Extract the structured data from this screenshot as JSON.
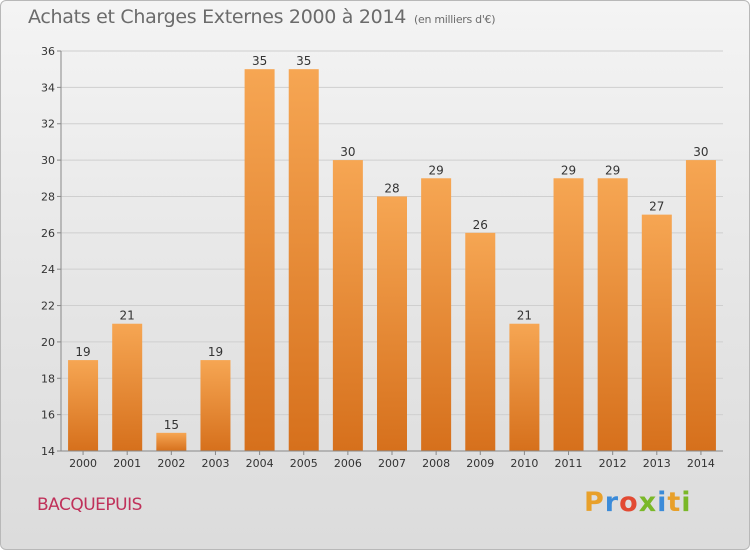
{
  "header": {
    "title": "Achats et Charges Externes 2000 à 2014",
    "unit": "(en milliers d'€)"
  },
  "footer": {
    "place": "BACQUEPUIS",
    "brand_letters": [
      "P",
      "r",
      "o",
      "x",
      "i",
      "t",
      "i"
    ],
    "brand_colors": [
      "#e8a02a",
      "#3b8bd9",
      "#e24a33",
      "#7ab828",
      "#3b8bd9",
      "#e8a02a",
      "#7ab828"
    ]
  },
  "colors": {
    "bar_top": "#f6a653",
    "bar_bottom": "#d6701c",
    "grid": "#cfcfcf",
    "axis": "#888888",
    "text": "#333333"
  },
  "chart_data": {
    "type": "bar",
    "categories": [
      "2000",
      "2001",
      "2002",
      "2003",
      "2004",
      "2005",
      "2006",
      "2007",
      "2008",
      "2009",
      "2010",
      "2011",
      "2012",
      "2013",
      "2014"
    ],
    "values": [
      19,
      21,
      15,
      19,
      35,
      35,
      30,
      28,
      29,
      26,
      21,
      29,
      29,
      27,
      30
    ],
    "ylim": [
      14,
      36
    ],
    "yticks": [
      14,
      16,
      18,
      20,
      22,
      24,
      26,
      28,
      30,
      32,
      34,
      36
    ],
    "grid": true
  }
}
